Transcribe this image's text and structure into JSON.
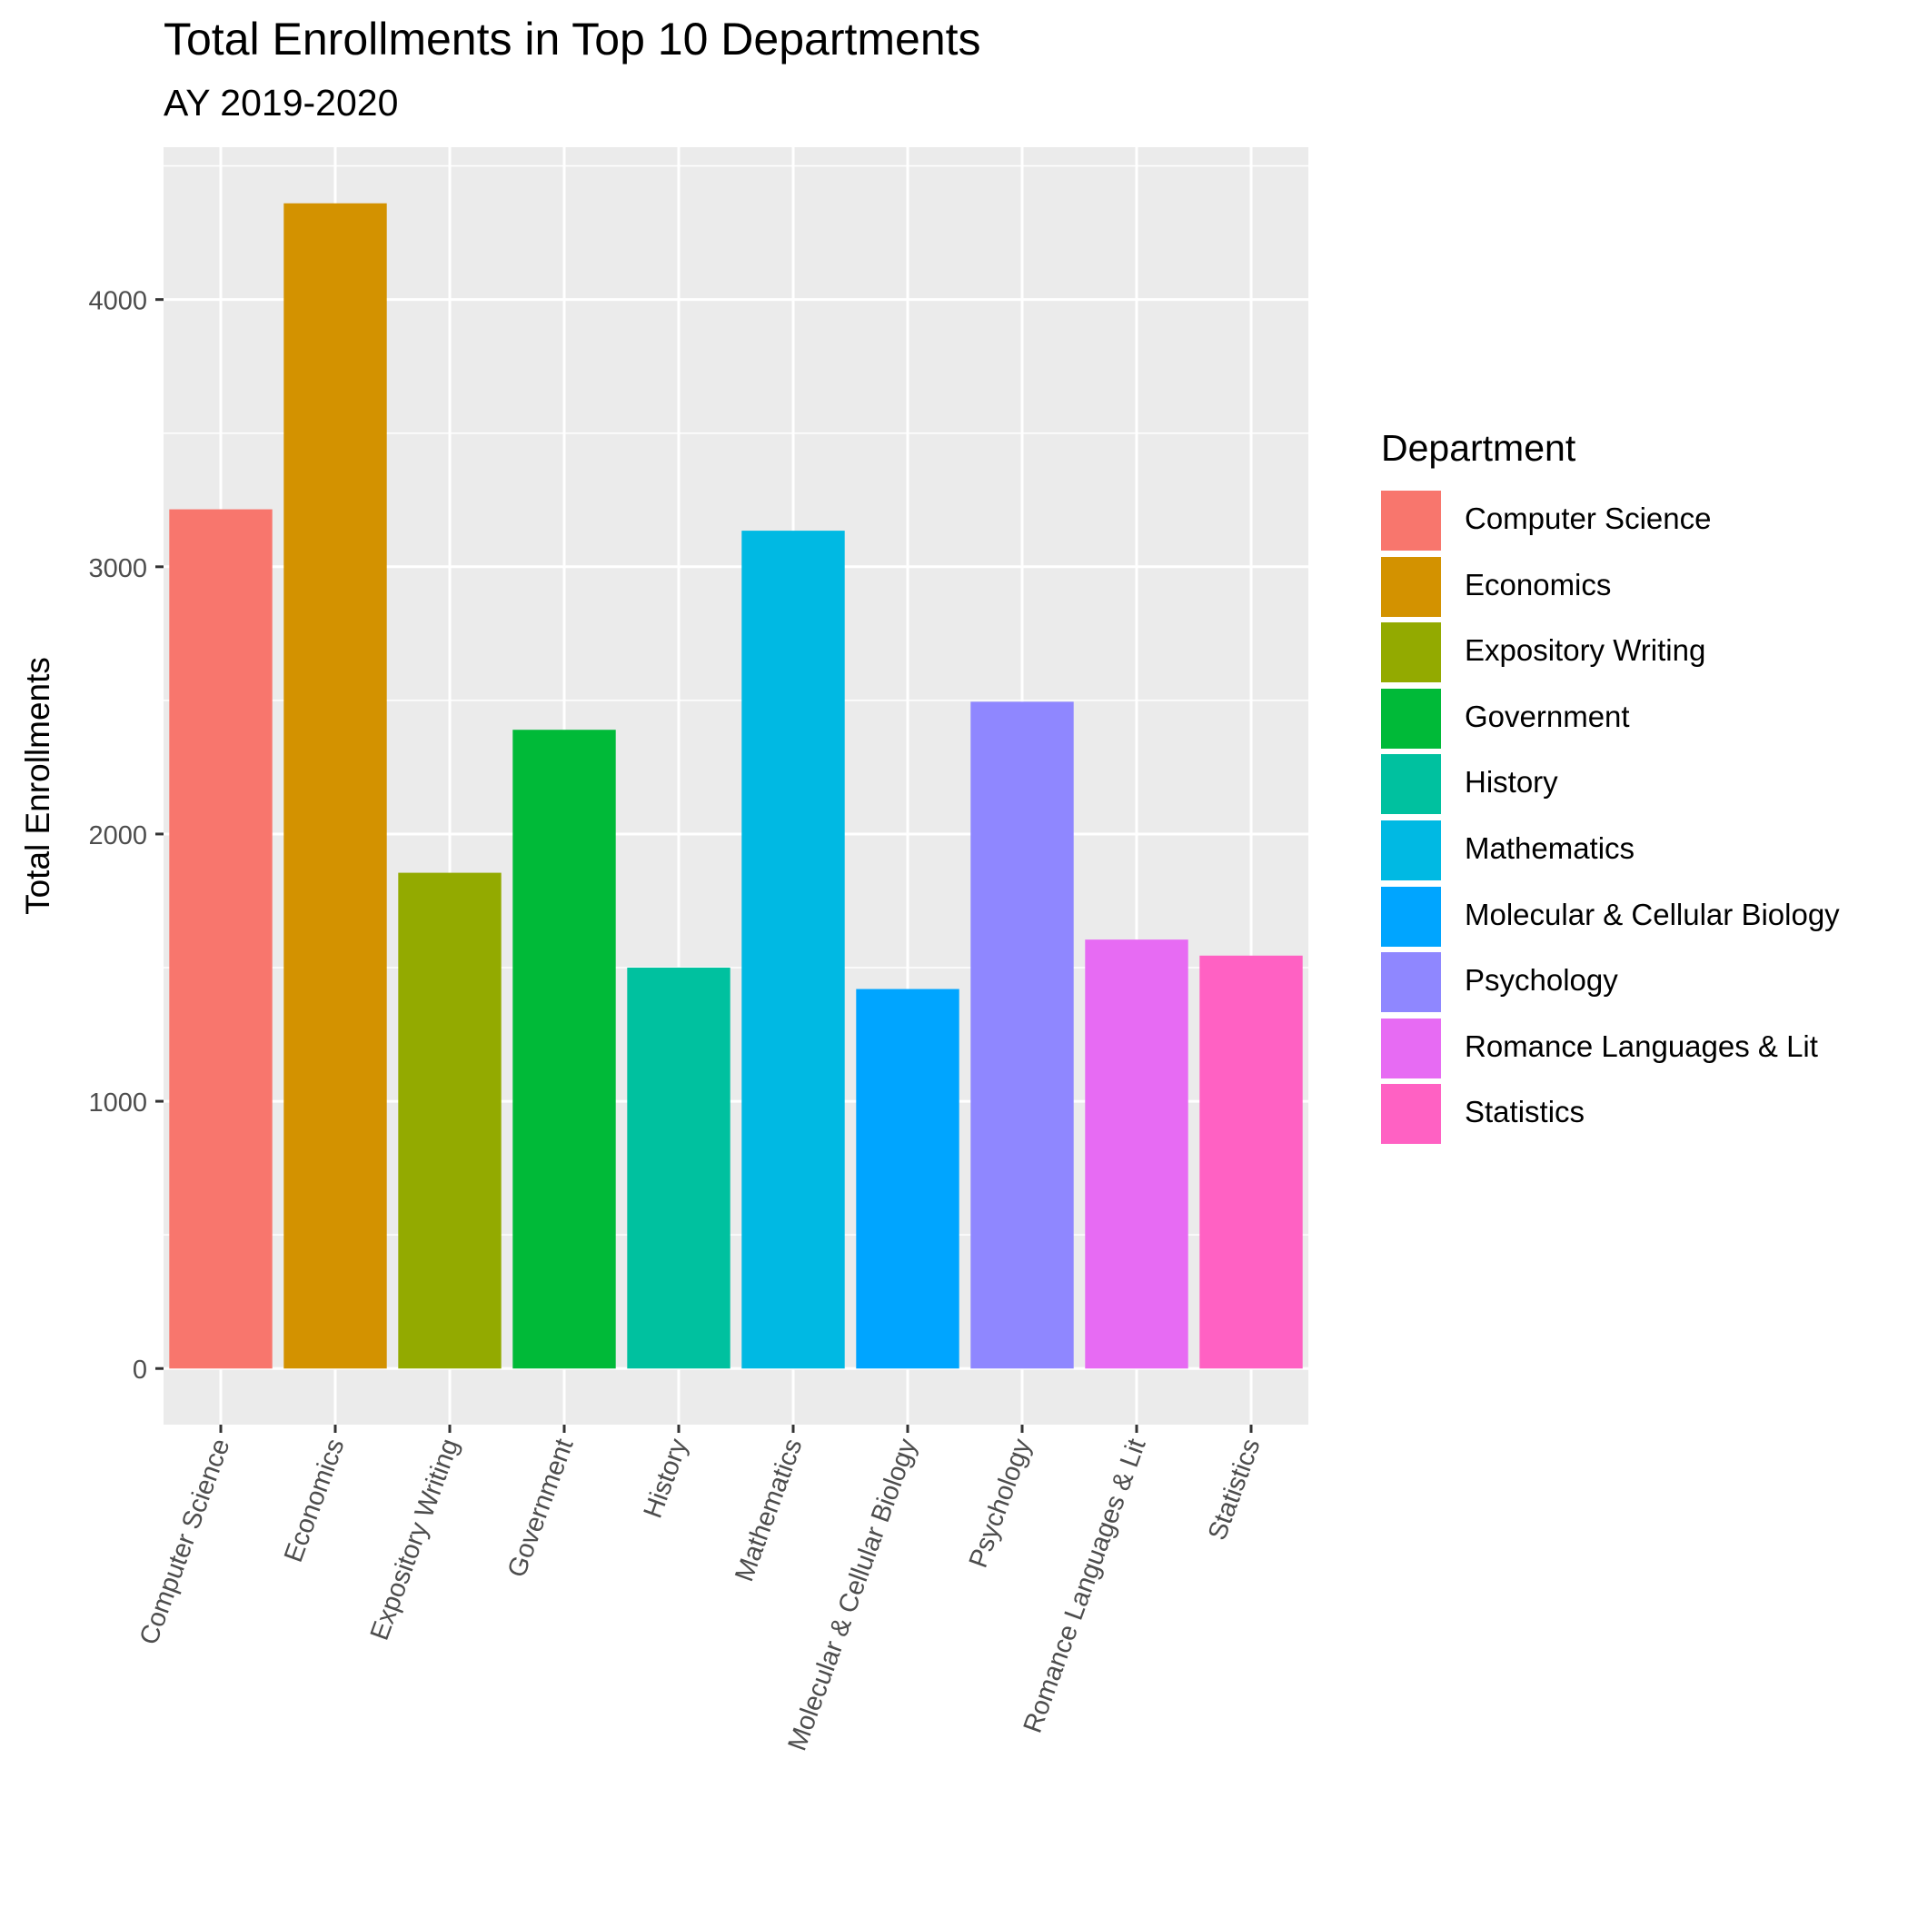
{
  "chart_data": {
    "type": "bar",
    "title": "Total Enrollments in Top 10 Departments",
    "subtitle": "AY 2019-2020",
    "xlabel": "",
    "ylabel": "Total Enrollments",
    "categories": [
      "Computer Science",
      "Economics",
      "Expository Writing",
      "Government",
      "History",
      "Mathematics",
      "Molecular & Cellular Biology",
      "Psychology",
      "Romance Languages & Lit",
      "Statistics"
    ],
    "values": [
      3215,
      4360,
      1855,
      2390,
      1500,
      3135,
      1420,
      2495,
      1605,
      1545
    ],
    "colors": [
      "#F8766D",
      "#D39200",
      "#93AA00",
      "#00BA38",
      "#00C19F",
      "#00B9E3",
      "#00A5FF",
      "#8F87FF",
      "#E76BF3",
      "#FF61C3"
    ],
    "ylim": [
      -210,
      4570
    ],
    "yticks": [
      0,
      1000,
      2000,
      3000,
      4000
    ],
    "ytick_labels": [
      "0",
      "1000",
      "2000",
      "3000",
      "4000"
    ],
    "grid": true,
    "legend": {
      "title": "Department",
      "position": "right"
    }
  }
}
